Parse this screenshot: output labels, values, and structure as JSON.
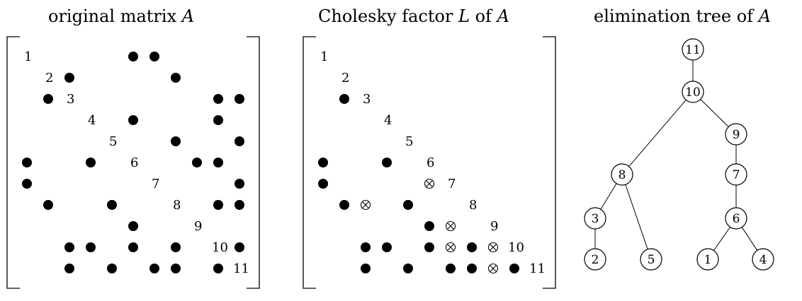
{
  "panels": {
    "original": {
      "title_text": "original matrix ",
      "title_var": "A",
      "diagonal": [
        "1",
        "2",
        "3",
        "4",
        "5",
        "6",
        "7",
        "8",
        "9",
        "10",
        "11"
      ],
      "entries": [
        [
          1,
          6,
          "dot"
        ],
        [
          1,
          7,
          "dot"
        ],
        [
          2,
          3,
          "dot"
        ],
        [
          2,
          8,
          "dot"
        ],
        [
          3,
          2,
          "dot"
        ],
        [
          3,
          10,
          "dot"
        ],
        [
          3,
          11,
          "dot"
        ],
        [
          4,
          6,
          "dot"
        ],
        [
          4,
          10,
          "dot"
        ],
        [
          5,
          8,
          "dot"
        ],
        [
          5,
          11,
          "dot"
        ],
        [
          6,
          1,
          "dot"
        ],
        [
          6,
          4,
          "dot"
        ],
        [
          6,
          9,
          "dot"
        ],
        [
          6,
          10,
          "dot"
        ],
        [
          7,
          1,
          "dot"
        ],
        [
          7,
          11,
          "dot"
        ],
        [
          8,
          2,
          "dot"
        ],
        [
          8,
          5,
          "dot"
        ],
        [
          8,
          10,
          "dot"
        ],
        [
          8,
          11,
          "dot"
        ],
        [
          9,
          6,
          "dot"
        ],
        [
          10,
          3,
          "dot"
        ],
        [
          10,
          4,
          "dot"
        ],
        [
          10,
          6,
          "dot"
        ],
        [
          10,
          8,
          "dot"
        ],
        [
          10,
          11,
          "dot"
        ],
        [
          11,
          3,
          "dot"
        ],
        [
          11,
          5,
          "dot"
        ],
        [
          11,
          7,
          "dot"
        ],
        [
          11,
          8,
          "dot"
        ],
        [
          11,
          10,
          "dot"
        ]
      ]
    },
    "cholesky": {
      "title_text_1": "Cholesky factor ",
      "title_var_1": "L",
      "title_text_2": " of ",
      "title_var_2": "A",
      "diagonal": [
        "1",
        "2",
        "3",
        "4",
        "5",
        "6",
        "7",
        "8",
        "9",
        "10",
        "11"
      ],
      "entries": [
        [
          3,
          2,
          "dot"
        ],
        [
          6,
          1,
          "dot"
        ],
        [
          6,
          4,
          "dot"
        ],
        [
          7,
          1,
          "dot"
        ],
        [
          7,
          6,
          "fill"
        ],
        [
          8,
          2,
          "dot"
        ],
        [
          8,
          3,
          "fill"
        ],
        [
          8,
          5,
          "dot"
        ],
        [
          9,
          6,
          "dot"
        ],
        [
          9,
          7,
          "fill"
        ],
        [
          10,
          3,
          "dot"
        ],
        [
          10,
          4,
          "dot"
        ],
        [
          10,
          6,
          "dot"
        ],
        [
          10,
          7,
          "fill"
        ],
        [
          10,
          8,
          "dot"
        ],
        [
          10,
          9,
          "fill"
        ],
        [
          11,
          3,
          "dot"
        ],
        [
          11,
          5,
          "dot"
        ],
        [
          11,
          7,
          "dot"
        ],
        [
          11,
          8,
          "dot"
        ],
        [
          11,
          9,
          "fill"
        ],
        [
          11,
          10,
          "dot"
        ]
      ]
    },
    "etree": {
      "title_text": "elimination tree of ",
      "title_var": "A",
      "nodes": [
        "1",
        "2",
        "3",
        "4",
        "5",
        "6",
        "7",
        "8",
        "9",
        "10",
        "11"
      ],
      "edges": [
        [
          "11",
          "10"
        ],
        [
          "10",
          "8"
        ],
        [
          "10",
          "9"
        ],
        [
          "9",
          "7"
        ],
        [
          "7",
          "6"
        ],
        [
          "8",
          "3"
        ],
        [
          "8",
          "5"
        ],
        [
          "3",
          "2"
        ],
        [
          "6",
          "1"
        ],
        [
          "6",
          "4"
        ]
      ]
    }
  }
}
